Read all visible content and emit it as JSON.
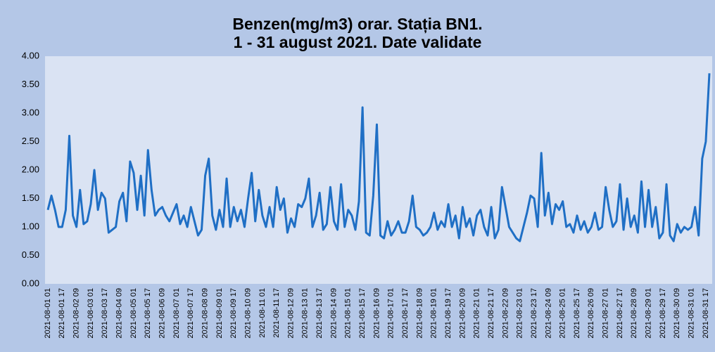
{
  "chart_data": {
    "type": "line",
    "title": "Benzen(mg/m3) orar. Stația BN1.",
    "subtitle": "1 - 31 august 2021. Date validate",
    "categories": [
      "2021-08-01 01",
      null,
      null,
      null,
      "2021-08-01 17",
      null,
      null,
      null,
      "2021-08-02 09",
      null,
      null,
      null,
      "2021-08-03 01",
      null,
      null,
      null,
      "2021-08-03 17",
      null,
      null,
      null,
      "2021-08-04 09",
      null,
      null,
      null,
      "2021-08-05 01",
      null,
      null,
      null,
      "2021-08-05 17",
      null,
      null,
      null,
      "2021-08-06 09",
      null,
      null,
      null,
      "2021-08-07 01",
      null,
      null,
      null,
      "2021-08-07 17",
      null,
      null,
      null,
      "2021-08-08 09",
      null,
      null,
      null,
      "2021-08-09 01",
      null,
      null,
      null,
      "2021-08-09 17",
      null,
      null,
      null,
      "2021-08-10 09",
      null,
      null,
      null,
      "2021-08-11 01",
      null,
      null,
      null,
      "2021-08-11 17",
      null,
      null,
      null,
      "2021-08-12 09",
      null,
      null,
      null,
      "2021-08-13 01",
      null,
      null,
      null,
      "2021-08-13 17",
      null,
      null,
      null,
      "2021-08-14 09",
      null,
      null,
      null,
      "2021-08-15 01",
      null,
      null,
      null,
      "2021-08-15 17",
      null,
      null,
      null,
      "2021-08-16 09",
      null,
      null,
      null,
      "2021-08-17 01",
      null,
      null,
      null,
      "2021-08-17 17",
      null,
      null,
      null,
      "2021-08-18 09",
      null,
      null,
      null,
      "2021-08-19 01",
      null,
      null,
      null,
      "2021-08-19 17",
      null,
      null,
      null,
      "2021-08-20 09",
      null,
      null,
      null,
      "2021-08-21 01",
      null,
      null,
      null,
      "2021-08-21 17",
      null,
      null,
      null,
      "2021-08-22 09",
      null,
      null,
      null,
      "2021-08-23 01",
      null,
      null,
      null,
      "2021-08-23 17",
      null,
      null,
      null,
      "2021-08-24 09",
      null,
      null,
      null,
      "2021-08-25 01",
      null,
      null,
      null,
      "2021-08-25 17",
      null,
      null,
      null,
      "2021-08-26 09",
      null,
      null,
      null,
      "2021-08-27 01",
      null,
      null,
      null,
      "2021-08-27 17",
      null,
      null,
      null,
      "2021-08-28 09",
      null,
      null,
      null,
      "2021-08-29 01",
      null,
      null,
      null,
      "2021-08-29 17",
      null,
      null,
      null,
      "2021-08-30 09",
      null,
      null,
      null,
      "2021-08-31 01",
      null,
      null,
      null,
      "2021-08-31 17",
      null
    ],
    "values": [
      1.3,
      1.55,
      1.3,
      1.0,
      1.0,
      1.3,
      2.6,
      1.2,
      1.0,
      1.65,
      1.05,
      1.1,
      1.4,
      2.0,
      1.3,
      1.6,
      1.5,
      0.9,
      0.95,
      1.0,
      1.45,
      1.6,
      1.1,
      2.15,
      1.95,
      1.3,
      1.9,
      1.2,
      2.35,
      1.65,
      1.2,
      1.3,
      1.35,
      1.2,
      1.1,
      1.25,
      1.4,
      1.05,
      1.2,
      1.0,
      1.35,
      1.1,
      0.85,
      0.95,
      1.9,
      2.2,
      1.2,
      0.95,
      1.3,
      1.0,
      1.85,
      1.0,
      1.35,
      1.1,
      1.3,
      1.0,
      1.5,
      1.95,
      1.1,
      1.65,
      1.2,
      1.0,
      1.35,
      1.0,
      1.7,
      1.3,
      1.5,
      0.9,
      1.15,
      1.0,
      1.4,
      1.35,
      1.5,
      1.85,
      1.0,
      1.2,
      1.6,
      0.95,
      1.05,
      1.7,
      1.1,
      0.95,
      1.75,
      1.0,
      1.3,
      1.2,
      0.95,
      1.45,
      3.1,
      0.9,
      0.85,
      1.55,
      2.8,
      0.85,
      0.8,
      1.1,
      0.85,
      0.95,
      1.1,
      0.9,
      0.9,
      1.1,
      1.55,
      1.0,
      0.95,
      0.85,
      0.9,
      1.0,
      1.25,
      0.95,
      1.1,
      1.0,
      1.4,
      1.0,
      1.2,
      0.8,
      1.35,
      1.0,
      1.15,
      0.85,
      1.2,
      1.3,
      1.0,
      0.85,
      1.35,
      0.8,
      0.95,
      1.7,
      1.35,
      1.0,
      0.9,
      0.8,
      0.75,
      1.0,
      1.25,
      1.55,
      1.5,
      1.0,
      2.3,
      1.2,
      1.6,
      1.05,
      1.4,
      1.3,
      1.45,
      1.0,
      1.05,
      0.9,
      1.2,
      0.95,
      1.1,
      0.9,
      1.0,
      1.25,
      0.95,
      1.0,
      1.7,
      1.3,
      1.0,
      1.1,
      1.75,
      0.95,
      1.5,
      1.0,
      1.2,
      0.9,
      1.8,
      1.0,
      1.65,
      1.0,
      1.35,
      0.8,
      0.9,
      1.75,
      0.85,
      0.75,
      1.05,
      0.9,
      1.0,
      0.95,
      1.0,
      1.35,
      0.85,
      2.2,
      2.5,
      3.7
    ],
    "color": "#1f6fc5",
    "ylim": [
      0,
      4
    ],
    "yticks": [
      {
        "value": 0,
        "label": "0.00"
      },
      {
        "value": 0.5,
        "label": "0.50"
      },
      {
        "value": 1,
        "label": "1.00"
      },
      {
        "value": 1.5,
        "label": "1.50"
      },
      {
        "value": 2,
        "label": "2.00"
      },
      {
        "value": 2.5,
        "label": "2.50"
      },
      {
        "value": 3,
        "label": "3.00"
      },
      {
        "value": 3.5,
        "label": "3.50"
      },
      {
        "value": 4,
        "label": "4.00"
      }
    ],
    "grid": false
  }
}
